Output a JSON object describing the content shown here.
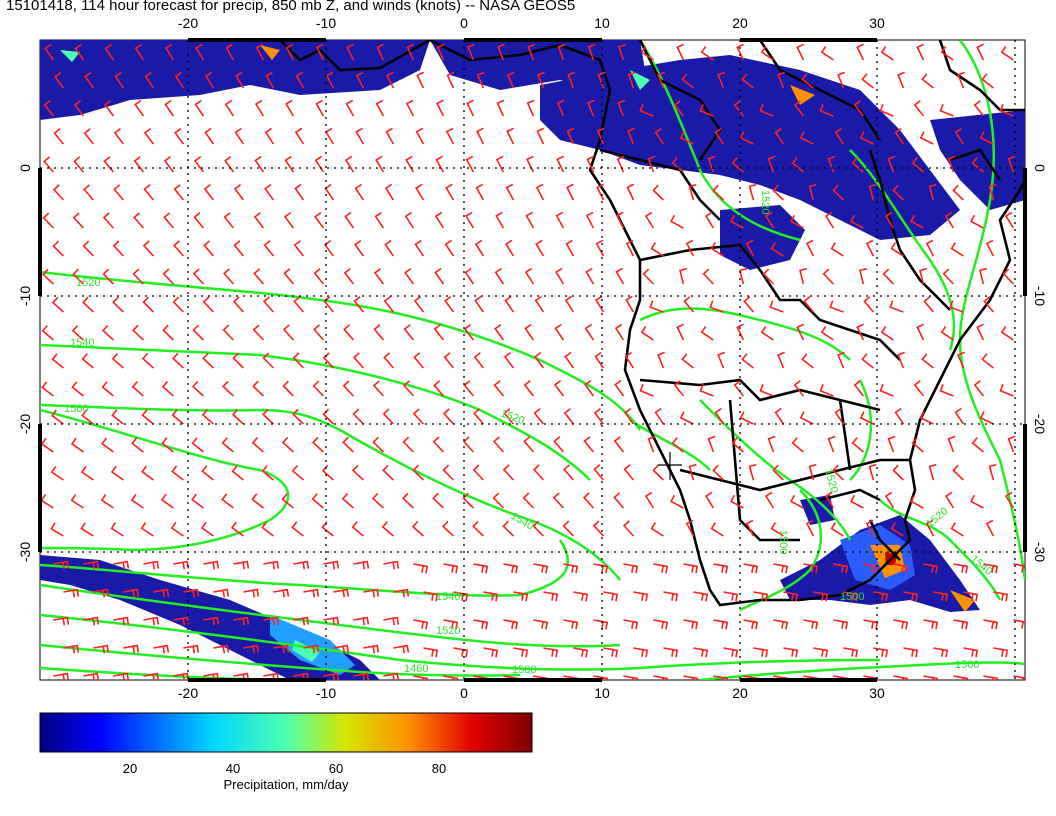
{
  "title": "15101418, 114 hour forecast for precip, 850 mb Z, and winds (knots) -- NASA GEOS5",
  "map": {
    "lon_ticks": [
      "-20",
      "-10",
      "0",
      "10",
      "20",
      "30"
    ],
    "lat_ticks": [
      "0",
      "-10",
      "-20",
      "-30"
    ],
    "contour_labels": [
      "1520",
      "1540",
      "1560",
      "1520",
      "1540",
      "1540",
      "1520",
      "1500",
      "1460",
      "1500",
      "1520",
      "1500",
      "1540",
      "1520",
      "1500",
      "1520"
    ],
    "colors": {
      "contour": "#22ee22",
      "barb": "#ff2020",
      "coast": "#000000"
    }
  },
  "colorbar": {
    "ticks": [
      "20",
      "40",
      "60",
      "80"
    ],
    "label": "Precipitation, mm/day"
  }
}
